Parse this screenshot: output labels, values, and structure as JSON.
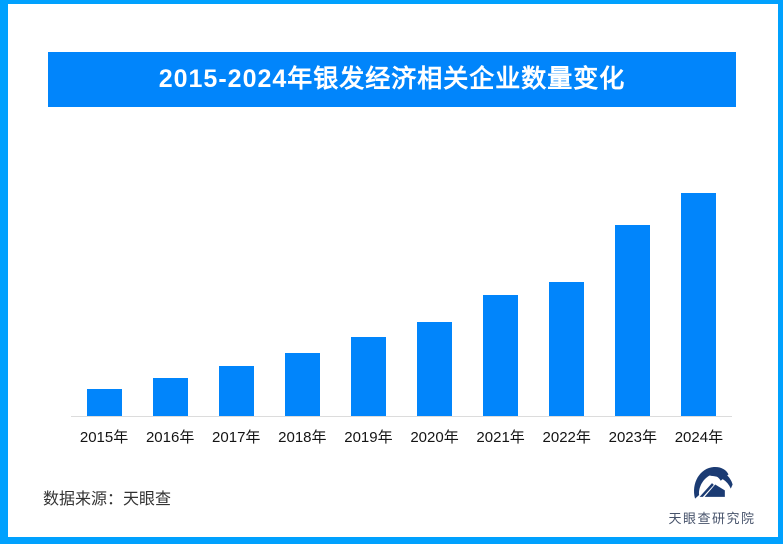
{
  "page": {
    "background_color": "#ffffff",
    "border_color": "#00a1fe"
  },
  "header": {
    "title": "2015-2024年银发经济相关企业数量变化",
    "banner_color": "#0185fb",
    "text_color": "#ffffff"
  },
  "chart_data": {
    "type": "bar",
    "title": "2015-2024年银发经济相关企业数量变化",
    "categories": [
      "2015年",
      "2016年",
      "2017年",
      "2018年",
      "2019年",
      "2020年",
      "2021年",
      "2022年",
      "2023年",
      "2024年"
    ],
    "values": [
      27,
      38,
      50,
      63,
      79,
      94,
      121,
      134,
      191,
      223
    ],
    "value_note": "no y-axis or data labels shown; values are relative bar heights read from pixels (max 224)",
    "ylim": [
      0,
      224
    ],
    "xlabel": "",
    "ylabel": "",
    "grid": false,
    "legend": false,
    "bar_color": "#0185fb",
    "axis_line_color": "#dcdcdc",
    "tick_label_color": "#141414"
  },
  "footer": {
    "source_label": "数据来源：天眼查"
  },
  "logo": {
    "brand_text": "天眼查研究院",
    "icon": "tianyancha-eye-swoosh-icon",
    "mark_color": "#1b3b73",
    "text_color": "#47536b"
  }
}
